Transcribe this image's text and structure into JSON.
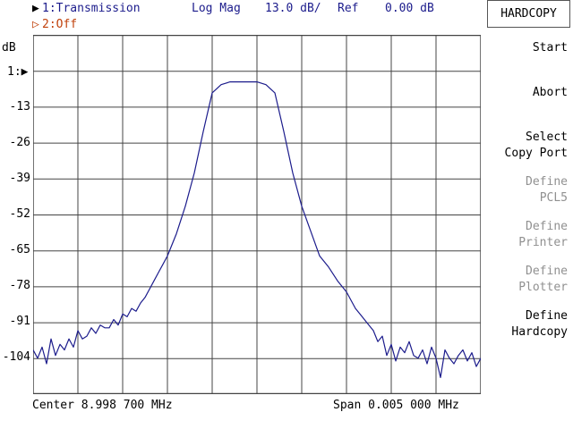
{
  "header": {
    "ch1_marker": "▶",
    "ch1_label": "1:Transmission",
    "format": "Log Mag",
    "scale": "13.0 dB/",
    "ref_label": "Ref",
    "ref_value": "0.00 dB",
    "ch2_marker": "▷",
    "ch2_label": "2:Off"
  },
  "axis": {
    "unit": "dB",
    "ref_marker": "1:▶",
    "y_ticks": [
      "-13",
      "-26",
      "-39",
      "-52",
      "-65",
      "-78",
      "-91",
      "-104"
    ]
  },
  "footer": {
    "center": "Center 8.998 700 MHz",
    "span": "Span 0.005 000 MHz"
  },
  "softkeys": {
    "title": "HARDCOPY",
    "start": [
      "Start"
    ],
    "abort": [
      "Abort"
    ],
    "select_copy_port": [
      "Select",
      "Copy Port"
    ],
    "define_pcl5": [
      "Define",
      "PCL5"
    ],
    "define_printer": [
      "Define",
      "Printer"
    ],
    "define_plotter": [
      "Define",
      "Plotter"
    ],
    "define_hardcopy": [
      "Define",
      "Hardcopy"
    ]
  },
  "colors": {
    "trace": "#1c1c8c",
    "grid": "#444444",
    "channel1": "#1c1c8c",
    "channel2": "#c0400a",
    "disabled": "#909090"
  },
  "chart_data": {
    "type": "line",
    "ylabel": "dB",
    "ylim": [
      -117,
      13
    ],
    "xlim": [
      0,
      100
    ],
    "grid": true,
    "series": [
      {
        "x": [
          0,
          1,
          2,
          3,
          4,
          5,
          6,
          7,
          8,
          9,
          10,
          11,
          12,
          13,
          14,
          15,
          16,
          17,
          18,
          19,
          20,
          21,
          22,
          23,
          24,
          25,
          26,
          27,
          28,
          29,
          30,
          32,
          34,
          36,
          38,
          40,
          42,
          44,
          46,
          48,
          50,
          52,
          54,
          56,
          58,
          60,
          62,
          64,
          66,
          68,
          70,
          71,
          72,
          73,
          74,
          75,
          76,
          77,
          78,
          79,
          80,
          81,
          82,
          83,
          84,
          85,
          86,
          87,
          88,
          89,
          90,
          91,
          92,
          93,
          94,
          95,
          96,
          97,
          98,
          99,
          100
        ],
        "y": [
          -101,
          -104,
          -100,
          -106,
          -97,
          -103,
          -99,
          -101,
          -97,
          -100,
          -94,
          -97,
          -96,
          -93,
          -95,
          -92,
          -93,
          -93,
          -90,
          -92,
          -88,
          -89,
          -86,
          -87,
          -84,
          -82,
          -79,
          -76,
          -73,
          -70,
          -67,
          -59,
          -49,
          -37,
          -22,
          -8,
          -5,
          -4,
          -4,
          -4,
          -4,
          -5,
          -8,
          -22,
          -37,
          -49,
          -58,
          -67,
          -71,
          -76,
          -80,
          -83,
          -86,
          -88,
          -90,
          -92,
          -94,
          -98,
          -96,
          -103,
          -99,
          -105,
          -100,
          -102,
          -98,
          -103,
          -104,
          -101,
          -106,
          -100,
          -104,
          -111,
          -101,
          -104,
          -106,
          -103,
          -101,
          -105,
          -102,
          -107,
          -104
        ]
      }
    ]
  }
}
